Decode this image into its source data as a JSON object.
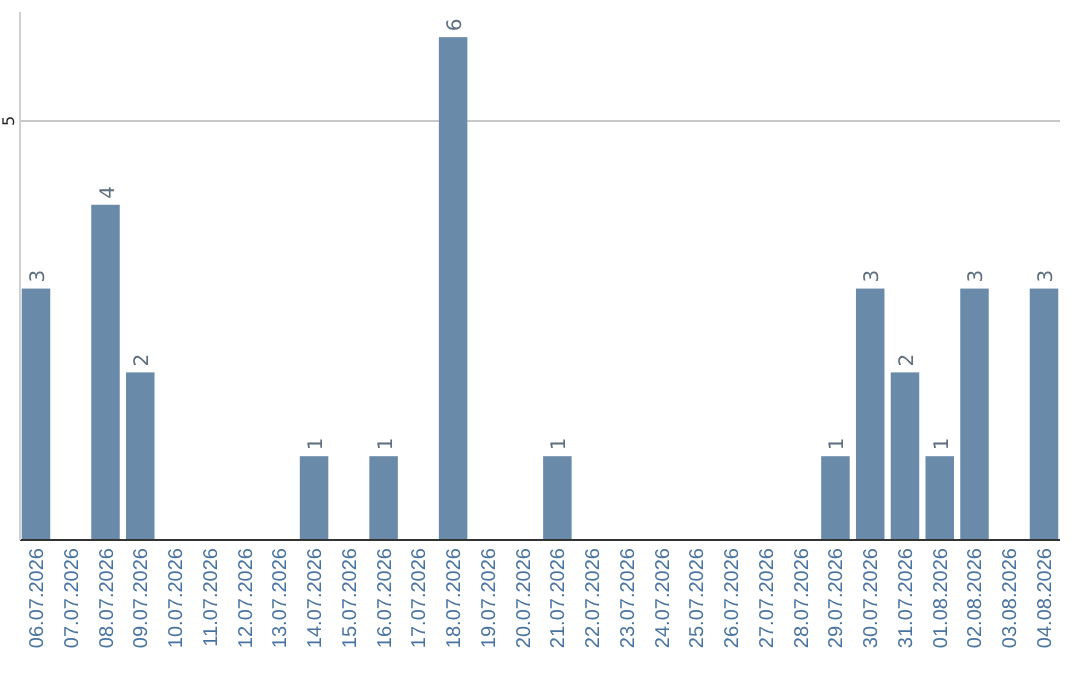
{
  "chart_data": {
    "type": "bar",
    "categories": [
      "06.07.2026",
      "07.07.2026",
      "08.07.2026",
      "09.07.2026",
      "10.07.2026",
      "11.07.2026",
      "12.07.2026",
      "13.07.2026",
      "14.07.2026",
      "15.07.2026",
      "16.07.2026",
      "17.07.2026",
      "18.07.2026",
      "19.07.2026",
      "20.07.2026",
      "21.07.2026",
      "22.07.2026",
      "23.07.2026",
      "24.07.2026",
      "25.07.2026",
      "26.07.2026",
      "27.07.2026",
      "28.07.2026",
      "29.07.2026",
      "30.07.2026",
      "31.07.2026",
      "01.08.2026",
      "02.08.2026",
      "03.08.2026",
      "04.08.2026"
    ],
    "values": [
      3,
      0,
      4,
      2,
      0,
      0,
      0,
      0,
      1,
      0,
      1,
      0,
      6,
      0,
      0,
      1,
      0,
      0,
      0,
      0,
      0,
      0,
      0,
      1,
      3,
      2,
      1,
      3,
      0,
      3
    ],
    "value_labels": [
      "3",
      null,
      "4",
      "2",
      null,
      null,
      null,
      null,
      "1",
      null,
      "1",
      null,
      "6",
      null,
      null,
      "1",
      null,
      null,
      null,
      null,
      null,
      null,
      null,
      "1",
      "3",
      "2",
      "1",
      "3",
      null,
      "3"
    ],
    "color": "#6a8aaa",
    "ylim": [
      0,
      6.3
    ],
    "yticks": [
      5
    ],
    "grid": "y"
  }
}
